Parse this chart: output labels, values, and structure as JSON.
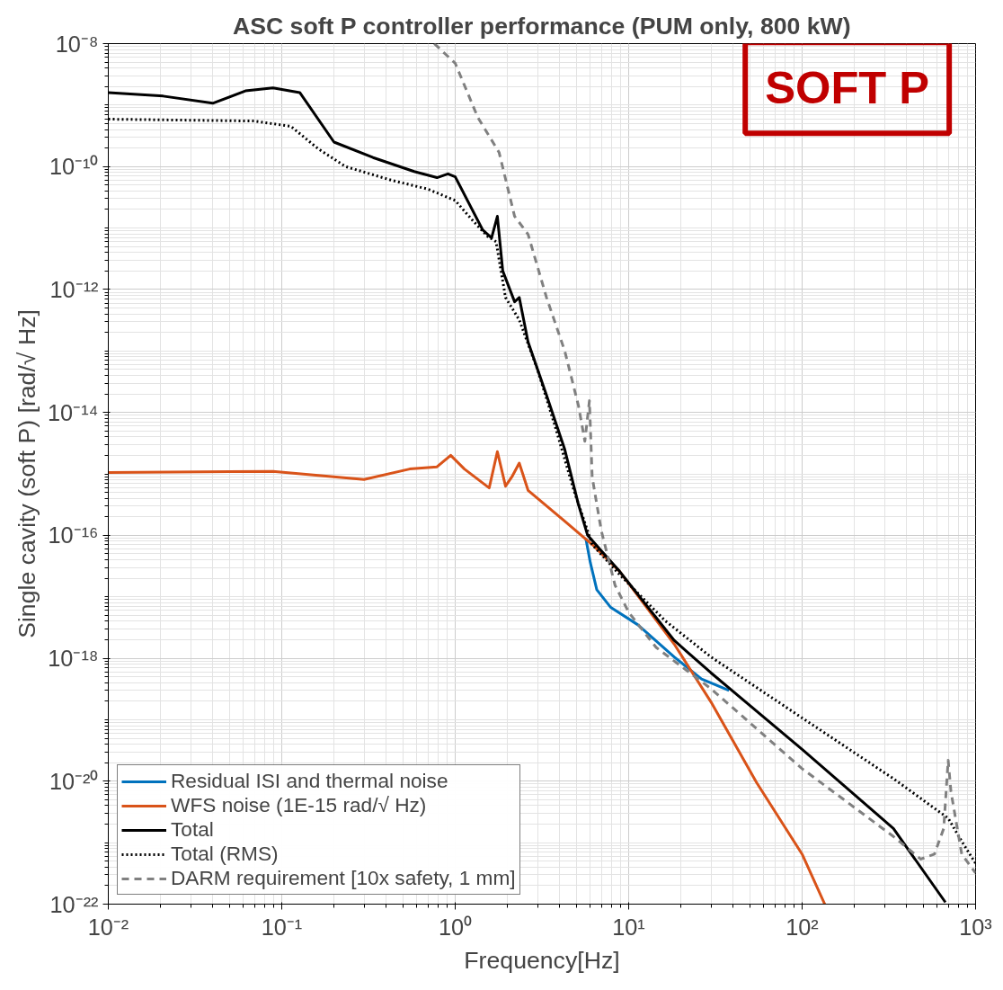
{
  "chart_data": {
    "type": "line",
    "title": "ASC soft P controller performance (PUM only, 800 kW)",
    "xlabel": "Frequency[Hz]",
    "ylabel": "Single cavity (soft P) [rad/√ Hz]",
    "log": "xy",
    "grid": true,
    "legend": "bottom left",
    "annotations": [
      "SOFT P"
    ],
    "xlim": [
      0.01,
      1000
    ],
    "ylim": [
      1e-22,
      1e-08
    ],
    "xticks": [
      {
        "value": 0.01,
        "label": "10⁻²"
      },
      {
        "value": 0.1,
        "label": "10⁻¹"
      },
      {
        "value": 1,
        "label": "10⁰"
      },
      {
        "value": 10,
        "label": "10¹"
      },
      {
        "value": 100,
        "label": "10²"
      },
      {
        "value": 1000,
        "label": "10³"
      }
    ],
    "yticks": [
      {
        "value": 1e-22,
        "label": "10⁻²²"
      },
      {
        "value": 1e-20,
        "label": "10⁻²⁰"
      },
      {
        "value": 1e-18,
        "label": "10⁻¹⁸"
      },
      {
        "value": 1e-16,
        "label": "10⁻¹⁶"
      },
      {
        "value": 1e-14,
        "label": "10⁻¹⁴"
      },
      {
        "value": 1e-12,
        "label": "10⁻¹²"
      },
      {
        "value": 1e-10,
        "label": "10⁻¹⁰"
      },
      {
        "value": 1e-08,
        "label": "10⁻⁸"
      }
    ],
    "series": [
      {
        "name": "Residual ISI and thermal noise",
        "color": "#0072bd",
        "line_style": "solid",
        "x": [
          5.66,
          6.01,
          6.55,
          7.85,
          11.3,
          18.3,
          26.3,
          37.9
        ],
        "values": [
          8.9e-17,
          3.6e-17,
          1.3e-17,
          6.8e-18,
          3.5e-18,
          1.05e-18,
          4.6e-19,
          3e-19
        ]
      },
      {
        "name": "WFS noise (1E-15 rad/√ Hz)",
        "color": "#d95319",
        "line_style": "solid",
        "x": [
          0.01,
          0.089,
          0.298,
          0.546,
          0.785,
          0.942,
          1.13,
          1.57,
          1.75,
          1.95,
          2.12,
          2.34,
          2.63,
          4.28,
          6.16,
          8.86,
          18.3,
          29.8,
          54.6,
          100,
          135
        ],
        "values": [
          1.05e-15,
          1.1e-15,
          8.1e-16,
          1.2e-15,
          1.3e-15,
          2e-15,
          1.2e-15,
          5.9e-16,
          2.3e-15,
          6.3e-16,
          8.9e-16,
          1.5e-15,
          5.4e-16,
          1.7e-16,
          7.1e-17,
          2.6e-17,
          1.7e-18,
          1.95e-19,
          9.5e-21,
          6.5e-22,
          1e-22
        ]
      },
      {
        "name": "Total",
        "color": "#000000",
        "line_style": "solid",
        "x": [
          0.01,
          0.0207,
          0.04,
          0.0617,
          0.089,
          0.127,
          0.2,
          0.336,
          0.58,
          0.785,
          0.908,
          1,
          1.44,
          1.62,
          1.75,
          1.88,
          2.2,
          2.34,
          2.63,
          3.36,
          4.28,
          5.13,
          5.8,
          6.95,
          8.86,
          18.3,
          29.8,
          100,
          336,
          670
        ],
        "values": [
          1.6e-09,
          1.4e-09,
          1.07e-09,
          1.7e-09,
          1.9e-09,
          1.6e-09,
          2.5e-10,
          1.4e-10,
          8.3e-11,
          6.6e-11,
          7.6e-11,
          6.8e-11,
          9.3e-12,
          6.9e-12,
          1.55e-11,
          2e-12,
          6.3e-13,
          7.4e-13,
          1.4e-13,
          1.9e-14,
          2.5e-15,
          3.2e-16,
          1e-16,
          5.6e-17,
          2.6e-17,
          1.95e-18,
          5.8e-19,
          3.3e-20,
          1.7e-21,
          1.07e-22
        ]
      },
      {
        "name": "Total (RMS)",
        "color": "#000000",
        "line_style": "dotted",
        "x": [
          0.01,
          0.0696,
          0.113,
          0.162,
          0.233,
          0.428,
          0.695,
          1,
          1.27,
          1.53,
          1.72,
          1.95,
          2.34,
          2.98,
          3.79,
          4.83,
          6.16,
          8.86,
          16.2,
          29.8,
          100,
          336,
          695,
          832,
          1000
        ],
        "values": [
          5.9e-10,
          5.5e-10,
          4.5e-10,
          1.95e-10,
          1e-10,
          6e-11,
          4.3e-11,
          2.8e-11,
          1.3e-11,
          7.4e-12,
          6e-12,
          7.4e-13,
          3.2e-13,
          5e-14,
          5.6e-15,
          5.4e-16,
          7.1e-17,
          2.3e-17,
          4.1e-18,
          1.05e-18,
          1.07e-19,
          1.1e-20,
          2.5e-21,
          1.05e-21,
          4.6e-22
        ]
      },
      {
        "name": "DARM requirement [10x safety, 1 mm]",
        "color": "#808080",
        "line_style": "dashed",
        "x": [
          0.757,
          1,
          1.35,
          1.79,
          2.2,
          2.63,
          3.36,
          4.28,
          5.13,
          5.59,
          5.94,
          6.16,
          6.95,
          8.34,
          10,
          14.4,
          29.8,
          100,
          336,
          483,
          579,
          655,
          695,
          721,
          832,
          1000
        ],
        "values": [
          1e-08,
          4.8e-09,
          6.3e-10,
          1.7e-10,
          1.55e-11,
          7.9e-12,
          7.4e-13,
          1e-13,
          1.3e-14,
          3.4e-15,
          1.55e-14,
          8.9e-16,
          1.2e-16,
          1.55e-17,
          5.6e-18,
          1.5e-18,
          3.2e-19,
          1.6e-20,
          1.26e-21,
          5.4e-22,
          6.5e-22,
          1.7e-21,
          2.2e-20,
          6.8e-21,
          6.5e-22,
          3.2e-22
        ]
      }
    ]
  }
}
